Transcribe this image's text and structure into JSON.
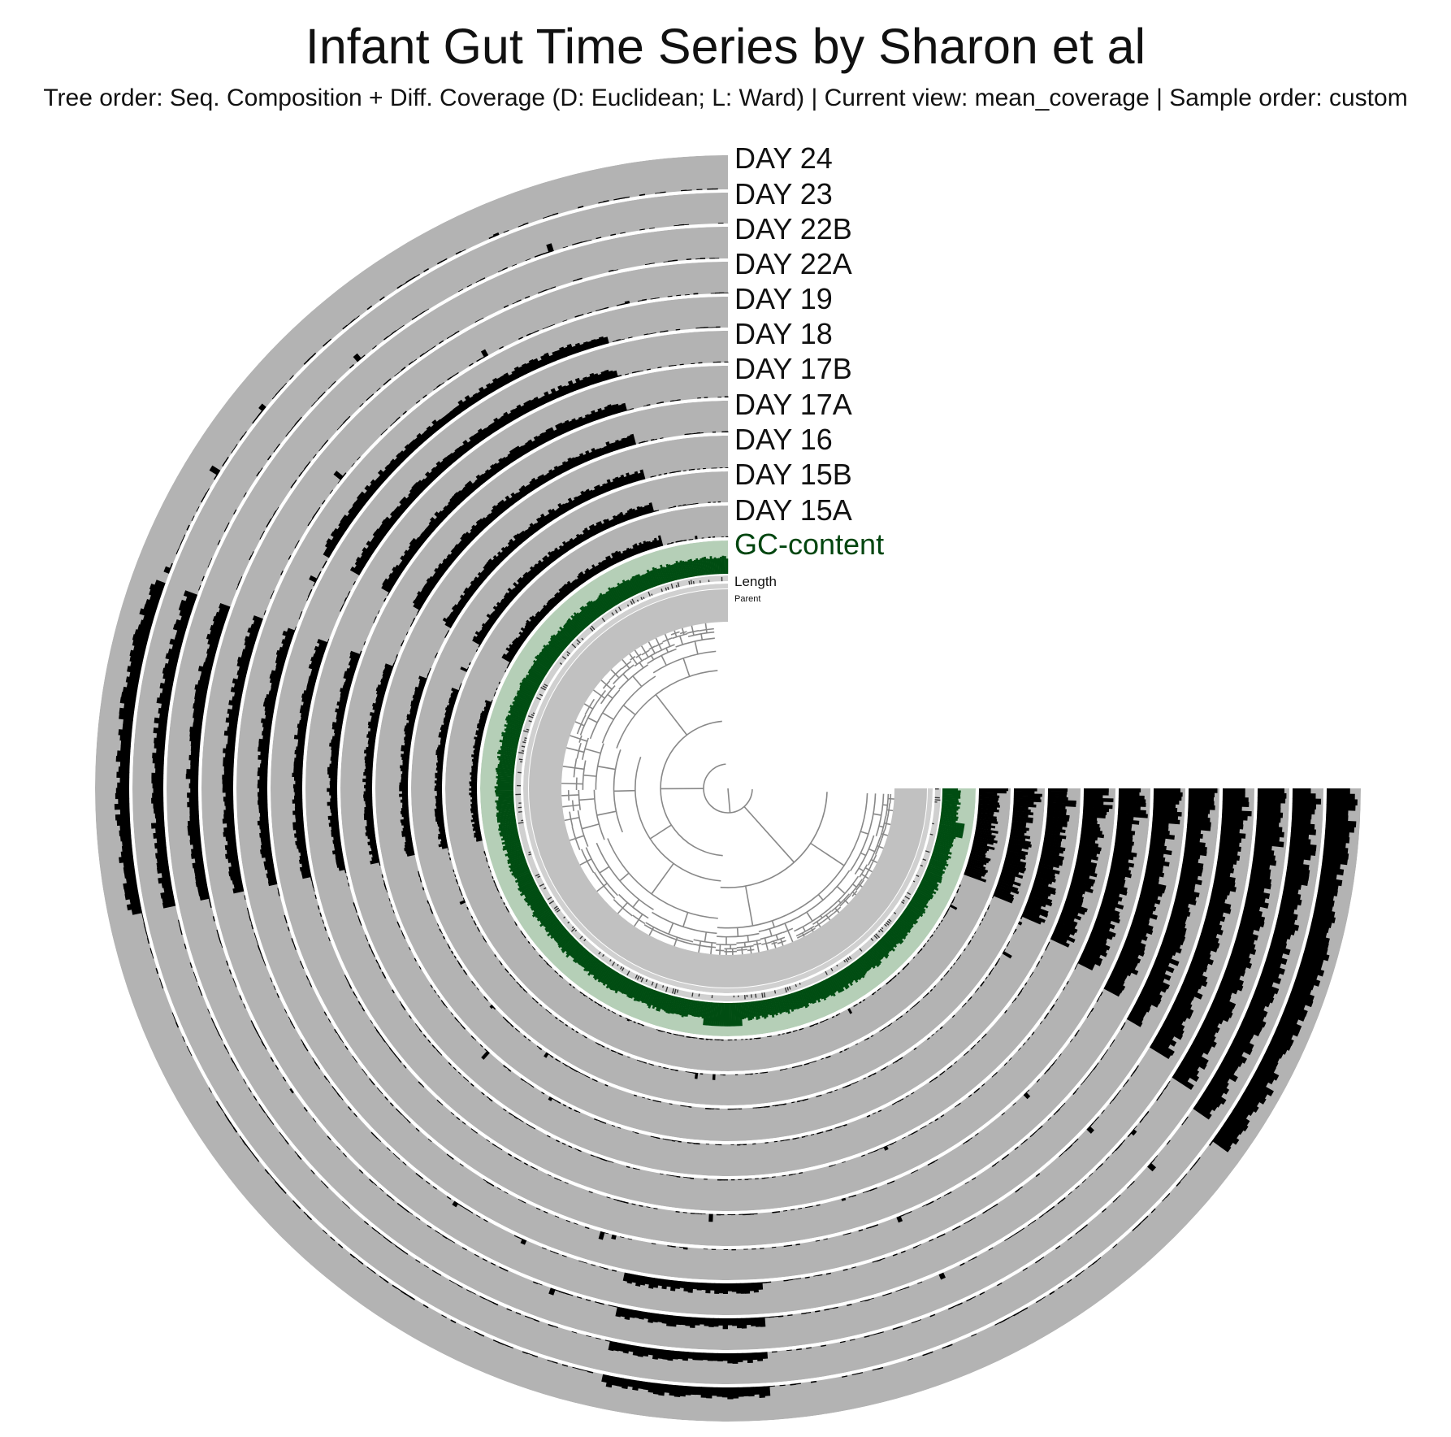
{
  "header": {
    "title": "Infant Gut Time Series by Sharon et al",
    "subtitle": "Tree order: Seq. Composition + Diff. Coverage (D: Euclidean; L: Ward) | Current view: mean_coverage | Sample order: custom"
  },
  "layers": [
    {
      "name": "DAY 24",
      "kind": "coverage"
    },
    {
      "name": "DAY 23",
      "kind": "coverage"
    },
    {
      "name": "DAY 22B",
      "kind": "coverage"
    },
    {
      "name": "DAY 22A",
      "kind": "coverage"
    },
    {
      "name": "DAY 19",
      "kind": "coverage"
    },
    {
      "name": "DAY 18",
      "kind": "coverage"
    },
    {
      "name": "DAY 17B",
      "kind": "coverage"
    },
    {
      "name": "DAY 17A",
      "kind": "coverage"
    },
    {
      "name": "DAY 16",
      "kind": "coverage"
    },
    {
      "name": "DAY 15B",
      "kind": "coverage"
    },
    {
      "name": "DAY 15A",
      "kind": "coverage"
    },
    {
      "name": "GC-content",
      "kind": "gc"
    },
    {
      "name": "Length",
      "kind": "length"
    },
    {
      "name": "Parent",
      "kind": "parent"
    }
  ],
  "colors": {
    "background": "#ffffff",
    "track": "#b3b3b3",
    "coverage_bar": "#000000",
    "gc_track": "#b5cfb7",
    "gc_bar": "#004d12",
    "gc_label": "#00450f",
    "tree_line": "#888888",
    "tree_fill": "#a6a6a6"
  },
  "chart_data": {
    "type": "circular_phylogram",
    "view": "mean_coverage",
    "arc_degrees": 270,
    "tree": {
      "distance": "Euclidean",
      "linkage": "Ward"
    }
  }
}
